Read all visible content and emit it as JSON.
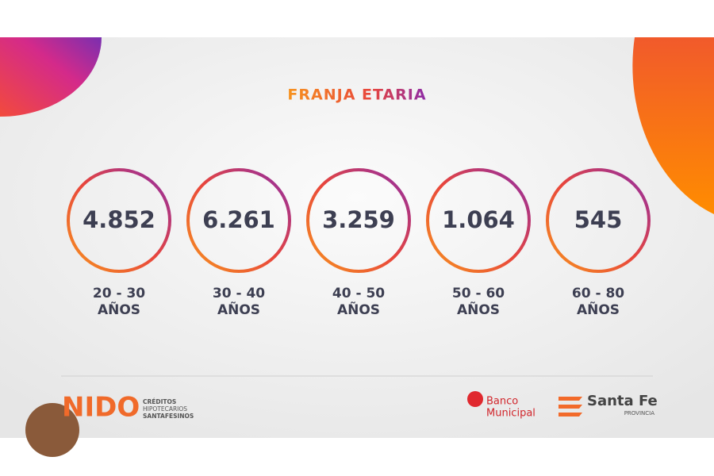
{
  "header": {
    "title": "FRANJA ETARIA"
  },
  "items": [
    {
      "value": "4.852",
      "range": "20 - 30",
      "unit": "AÑOS"
    },
    {
      "value": "6.261",
      "range": "30 - 40",
      "unit": "AÑOS"
    },
    {
      "value": "3.259",
      "range": "40 - 50",
      "unit": "AÑOS"
    },
    {
      "value": "1.064",
      "range": "50 - 60",
      "unit": "AÑOS"
    },
    {
      "value": "545",
      "range": "60 - 80",
      "unit": "AÑOS"
    }
  ],
  "footer": {
    "brand": "NIDO",
    "brand_line1": "CRÉDITOS",
    "brand_line2": "HIPOTECARIOS",
    "brand_line3": "SANTAFESINOS",
    "bank_line1": "Banco",
    "bank_line2": "Municipal",
    "province_name": "Santa Fe",
    "province_sub": "PROVINCIA"
  }
}
